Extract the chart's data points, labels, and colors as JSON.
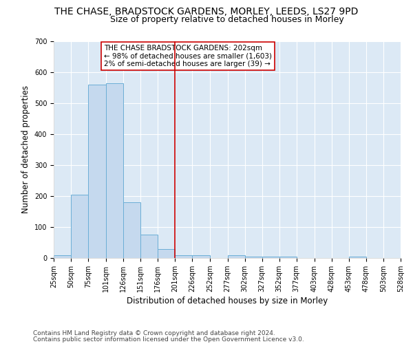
{
  "title": "THE CHASE, BRADSTOCK GARDENS, MORLEY, LEEDS, LS27 9PD",
  "subtitle": "Size of property relative to detached houses in Morley",
  "xlabel": "Distribution of detached houses by size in Morley",
  "ylabel": "Number of detached properties",
  "footer_line1": "Contains HM Land Registry data © Crown copyright and database right 2024.",
  "footer_line2": "Contains public sector information licensed under the Open Government Licence v3.0.",
  "annotation_line1": "THE CHASE BRADSTOCK GARDENS: 202sqm",
  "annotation_line2": "← 98% of detached houses are smaller (1,603)",
  "annotation_line3": "2% of semi-detached houses are larger (39) →",
  "bar_left_edges": [
    25,
    50,
    75,
    101,
    126,
    151,
    176,
    201,
    226,
    252,
    277,
    302,
    327,
    352,
    377,
    403,
    428,
    453,
    478,
    503
  ],
  "bar_heights": [
    10,
    205,
    560,
    565,
    180,
    75,
    30,
    8,
    8,
    0,
    8,
    5,
    5,
    5,
    0,
    0,
    0,
    5,
    0,
    0
  ],
  "bin_widths": [
    25,
    25,
    26,
    25,
    25,
    25,
    25,
    25,
    26,
    25,
    25,
    25,
    25,
    25,
    26,
    25,
    25,
    25,
    25,
    25
  ],
  "ylim": [
    0,
    700
  ],
  "yticks": [
    0,
    100,
    200,
    300,
    400,
    500,
    600,
    700
  ],
  "xtick_labels": [
    "25sqm",
    "50sqm",
    "75sqm",
    "101sqm",
    "126sqm",
    "151sqm",
    "176sqm",
    "201sqm",
    "226sqm",
    "252sqm",
    "277sqm",
    "302sqm",
    "327sqm",
    "352sqm",
    "377sqm",
    "403sqm",
    "428sqm",
    "453sqm",
    "478sqm",
    "503sqm",
    "528sqm"
  ],
  "bar_color": "#c5d9ee",
  "bar_edge_color": "#6baed6",
  "background_color": "#dce9f5",
  "plot_bg_color": "#dce9f5",
  "grid_color": "#ffffff",
  "vline_color": "#cc0000",
  "vline_x": 201,
  "annotation_box_color": "#cc0000",
  "title_fontsize": 10,
  "subtitle_fontsize": 9,
  "tick_label_fontsize": 7,
  "axis_label_fontsize": 8.5,
  "annotation_fontsize": 7.5,
  "footer_fontsize": 6.5
}
